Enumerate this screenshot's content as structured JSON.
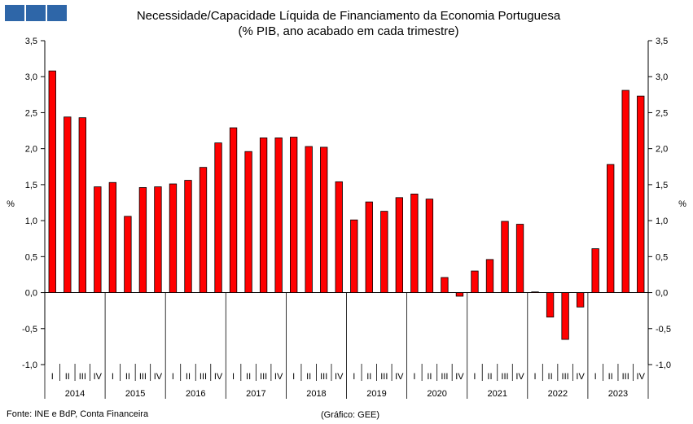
{
  "logo": {
    "color": "#2e66a8",
    "blocks": 3,
    "icon": "logo-icon"
  },
  "source_note": "Fonte: INE e BdP, Conta Financeira",
  "graph_note": "(Gráfico: GEE)",
  "chart_data": {
    "type": "bar",
    "title": "Necessidade/Capacidade Líquida de Financiamento da Economia Portuguesa",
    "subtitle": "(% PIB, ano acabado em cada trimestre)",
    "ylabel_left": "%",
    "ylabel_right": "%",
    "ylim": [
      -1.0,
      3.5
    ],
    "yticks": [
      "3,5",
      "3,0",
      "2,5",
      "2,0",
      "1,5",
      "1,0",
      "0,5",
      "0,0",
      "-0,5",
      "-1,0"
    ],
    "ytick_values": [
      3.5,
      3.0,
      2.5,
      2.0,
      1.5,
      1.0,
      0.5,
      0.0,
      -0.5,
      -1.0
    ],
    "bar_color": "#ff0000",
    "quarters": [
      "I",
      "II",
      "III",
      "IV"
    ],
    "years": [
      "2014",
      "2015",
      "2016",
      "2017",
      "2018",
      "2019",
      "2020",
      "2021",
      "2022",
      "2023"
    ],
    "values": [
      3.08,
      2.44,
      2.43,
      1.47,
      1.53,
      1.06,
      1.46,
      1.47,
      1.51,
      1.56,
      1.74,
      2.08,
      2.29,
      1.96,
      2.15,
      2.15,
      2.16,
      2.03,
      2.02,
      1.54,
      1.01,
      1.26,
      1.13,
      1.32,
      1.37,
      1.3,
      0.21,
      -0.05,
      0.3,
      0.46,
      0.99,
      0.95,
      0.01,
      -0.34,
      -0.65,
      -0.2,
      0.61,
      1.78,
      2.81,
      2.73
    ]
  }
}
